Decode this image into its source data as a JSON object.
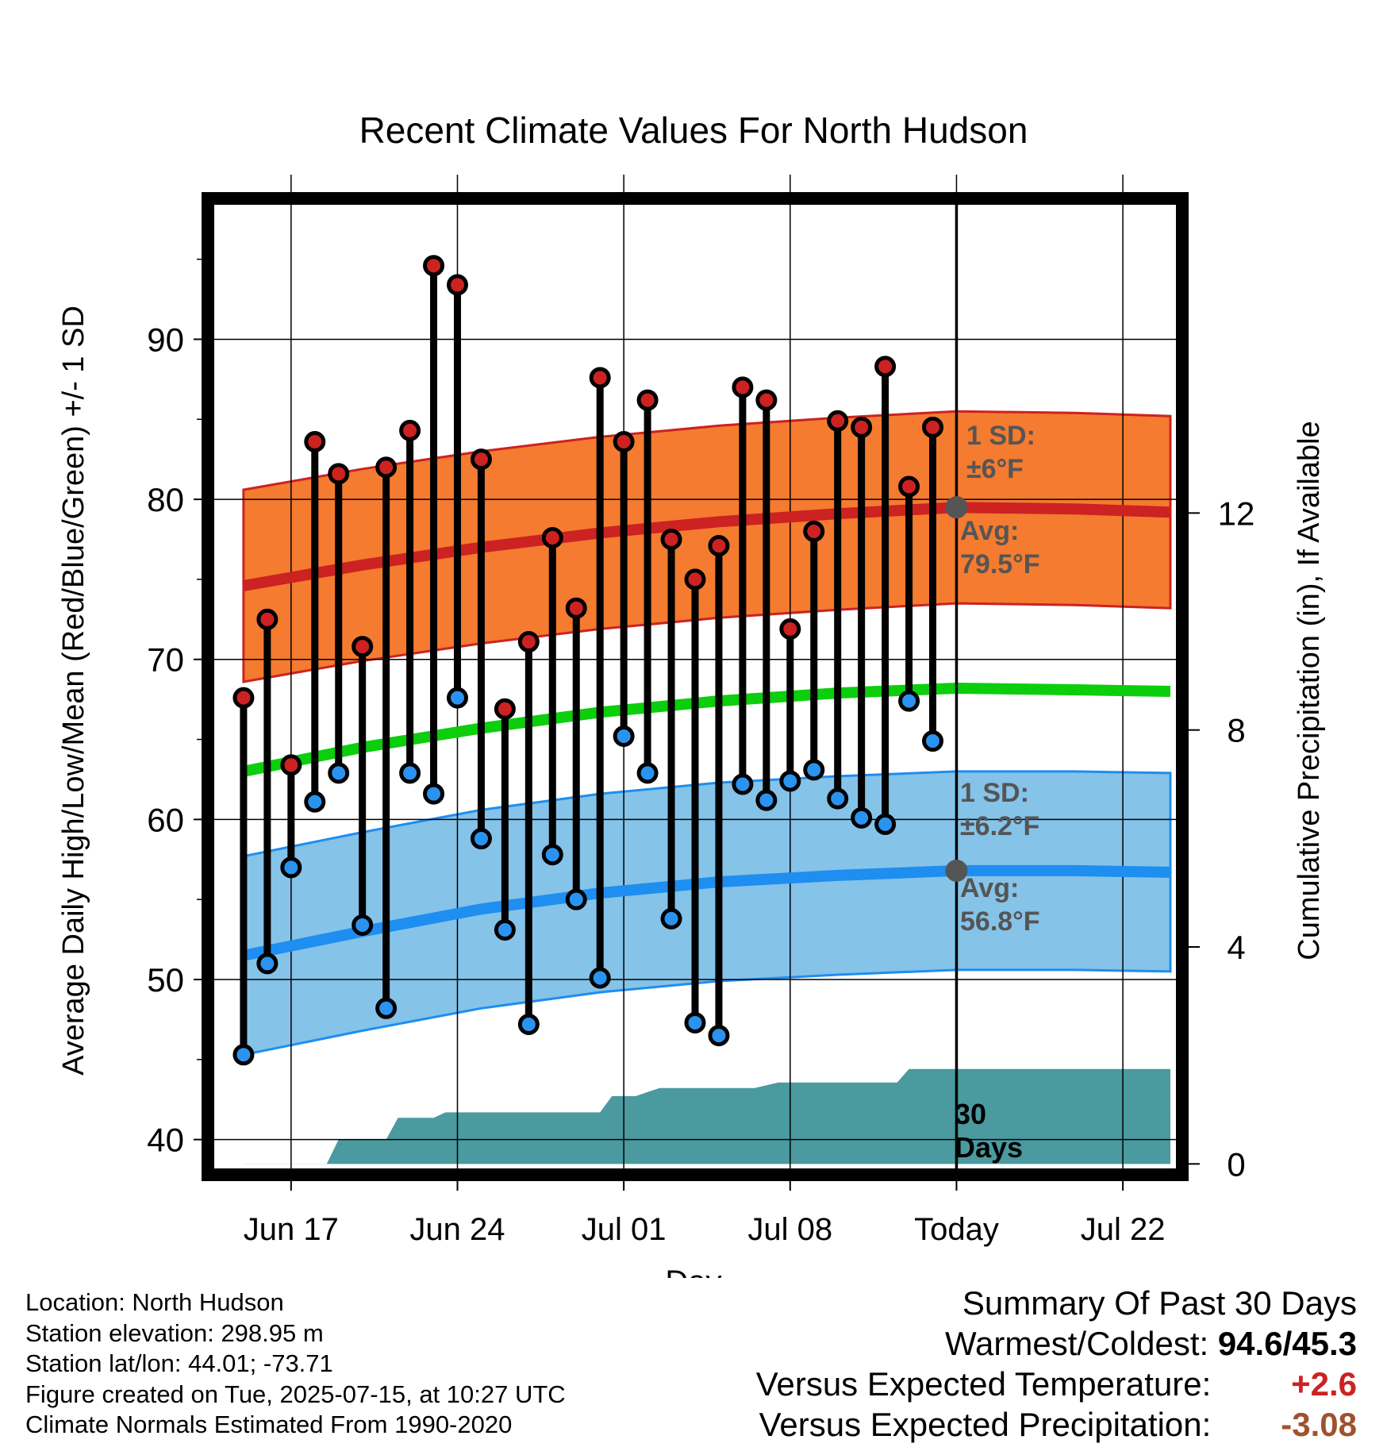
{
  "chart_data": {
    "type": "line",
    "title": "Recent Climate Values For North Hudson",
    "xlabel": "Day",
    "ylabel": "Average Daily High/Low/Mean (Red/Blue/Green) +/- 1 SD",
    "y2label": "Cumulative Precipitation (in), If Available",
    "x_ticks": [
      "Jun 17",
      "Jun 24",
      "Jul 01",
      "Jul 08",
      "Today",
      "Jul 22"
    ],
    "x_tick_days": [
      2,
      9,
      16,
      23,
      30,
      37
    ],
    "x_range_days": [
      -1.5,
      39.5
    ],
    "ylim": [
      37.8,
      98.8
    ],
    "y_ticks": [
      40,
      50,
      60,
      70,
      80,
      90
    ],
    "y2lim": [
      -0.2,
      17.8
    ],
    "y2_ticks": [
      0,
      4,
      8,
      12
    ],
    "grid": true,
    "days": [
      0,
      1,
      2,
      3,
      4,
      5,
      6,
      7,
      8,
      9,
      10,
      11,
      12,
      13,
      14,
      15,
      16,
      17,
      18,
      19,
      20,
      21,
      22,
      23,
      24,
      25,
      26,
      27,
      28,
      29
    ],
    "highs": [
      67.6,
      72.5,
      63.4,
      83.6,
      81.6,
      70.8,
      82.0,
      84.3,
      94.6,
      93.4,
      82.5,
      66.9,
      71.1,
      77.6,
      73.2,
      87.6,
      83.6,
      86.2,
      77.5,
      75.0,
      77.1,
      87.0,
      86.2,
      71.9,
      78.0,
      84.9,
      84.5,
      88.3,
      80.8,
      84.5
    ],
    "lows": [
      45.3,
      51.0,
      57.0,
      61.1,
      62.9,
      53.4,
      48.2,
      62.9,
      61.6,
      67.6,
      58.8,
      53.1,
      47.2,
      57.8,
      55.0,
      50.1,
      65.2,
      62.9,
      53.8,
      47.3,
      46.5,
      62.2,
      61.2,
      62.4,
      63.1,
      61.3,
      60.1,
      59.7,
      67.4,
      64.9
    ],
    "normals": {
      "x": [
        0,
        5,
        10,
        15,
        20,
        25,
        30,
        35,
        39
      ],
      "high_avg": [
        74.6,
        75.9,
        77.0,
        77.9,
        78.6,
        79.1,
        79.5,
        79.4,
        79.2
      ],
      "high_sd": 6.0,
      "low_avg": [
        51.5,
        53.0,
        54.4,
        55.4,
        56.1,
        56.5,
        56.8,
        56.8,
        56.7
      ],
      "low_sd": 6.2,
      "mean_avg": [
        63.0,
        64.5,
        65.7,
        66.7,
        67.4,
        67.9,
        68.2,
        68.1,
        68.0
      ]
    },
    "precip": {
      "x": [
        0,
        3.5,
        4,
        6,
        6.5,
        8,
        8.5,
        15,
        15.5,
        16.5,
        17.5,
        21.5,
        22.5,
        27.5,
        28,
        30,
        39
      ],
      "values": [
        0,
        0,
        0.45,
        0.45,
        0.85,
        0.85,
        0.95,
        0.95,
        1.25,
        1.25,
        1.4,
        1.4,
        1.5,
        1.5,
        1.75,
        1.75,
        1.75
      ]
    },
    "annotations": {
      "high_sd_text": "1 SD:",
      "high_sd_value": "±6°F",
      "high_avg_text": "Avg:",
      "high_avg_value": "79.5°F",
      "high_avg": 79.5,
      "low_sd_text": "1 SD:",
      "low_sd_value": "±6.2°F",
      "low_avg_text": "Avg:",
      "low_avg_value": "56.8°F",
      "low_avg": 56.8,
      "days_label_line1": "30",
      "days_label_line2": "Days"
    },
    "colors": {
      "high_band": "#f47b2f",
      "high_line": "#cc2222",
      "low_band": "#85c3e9",
      "low_line": "#1e8ef0",
      "mean_line": "#0cce0c",
      "precip": "#4a9aa0",
      "high_dot": "#cc2222",
      "low_dot": "#2a93f0",
      "annotation": "#555555"
    }
  },
  "info": {
    "location": "Location: North Hudson",
    "elevation": "Station elevation: 298.95 m",
    "latlon": "Station lat/lon: 44.01; -73.71",
    "created": "Figure created on Tue, 2025-07-15, at 10:27 UTC",
    "normals": "Climate Normals Estimated From 1990-2020"
  },
  "summary": {
    "title": "Summary Of Past 30 Days",
    "warmest_label": "Warmest/Coldest:",
    "warmest_value": "94.6/45.3",
    "temp_label": "Versus Expected Temperature:",
    "temp_value": "+2.6",
    "precip_label": "Versus Expected Precipitation:",
    "precip_value": "-3.08"
  }
}
